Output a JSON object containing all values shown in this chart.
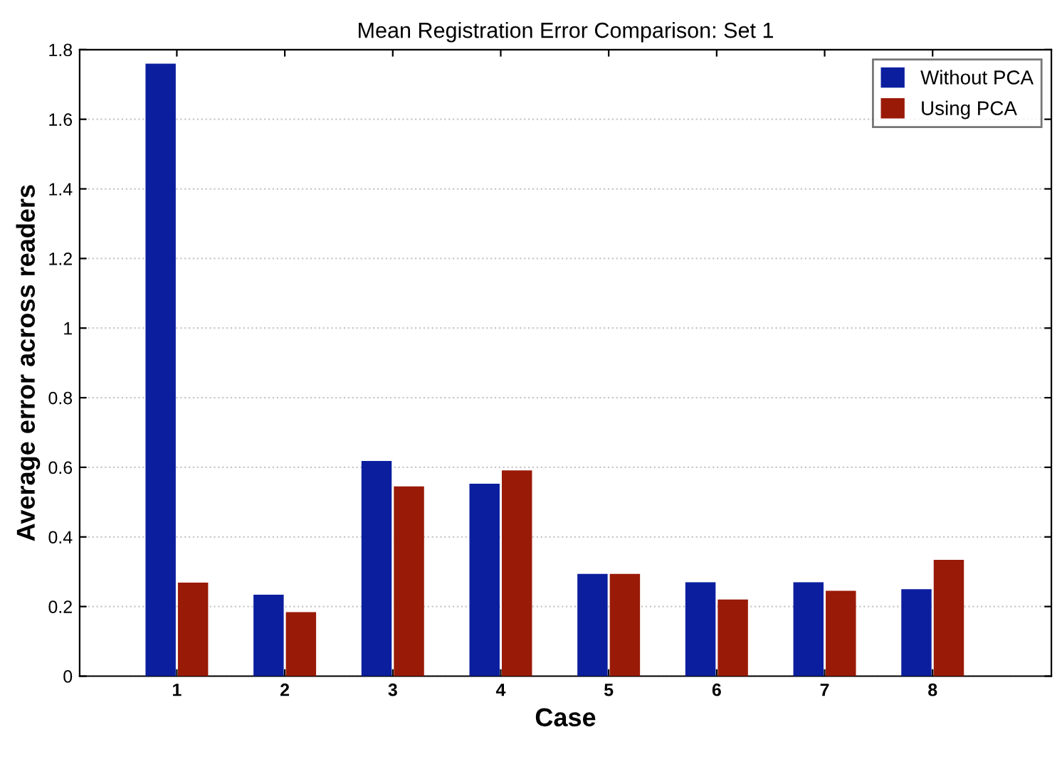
{
  "chart_data": {
    "type": "bar",
    "title": "Mean Registration Error Comparison: Set 1",
    "xlabel": "Case",
    "ylabel": "Average error across readers",
    "categories": [
      "1",
      "2",
      "3",
      "4",
      "5",
      "6",
      "7",
      "8"
    ],
    "series": [
      {
        "name": "Without PCA",
        "color": "#0b1f9e",
        "values": [
          1.76,
          0.234,
          0.618,
          0.553,
          0.294,
          0.27,
          0.27,
          0.25
        ]
      },
      {
        "name": "Using PCA",
        "color": "#9a1a08",
        "values": [
          0.269,
          0.184,
          0.545,
          0.591,
          0.294,
          0.22,
          0.245,
          0.334
        ]
      }
    ],
    "ylim": [
      0,
      1.8
    ],
    "yticks": [
      0,
      0.2,
      0.4,
      0.6,
      0.8,
      1,
      1.2,
      1.4,
      1.6,
      1.8
    ],
    "grid": "y",
    "legend": "top right"
  }
}
